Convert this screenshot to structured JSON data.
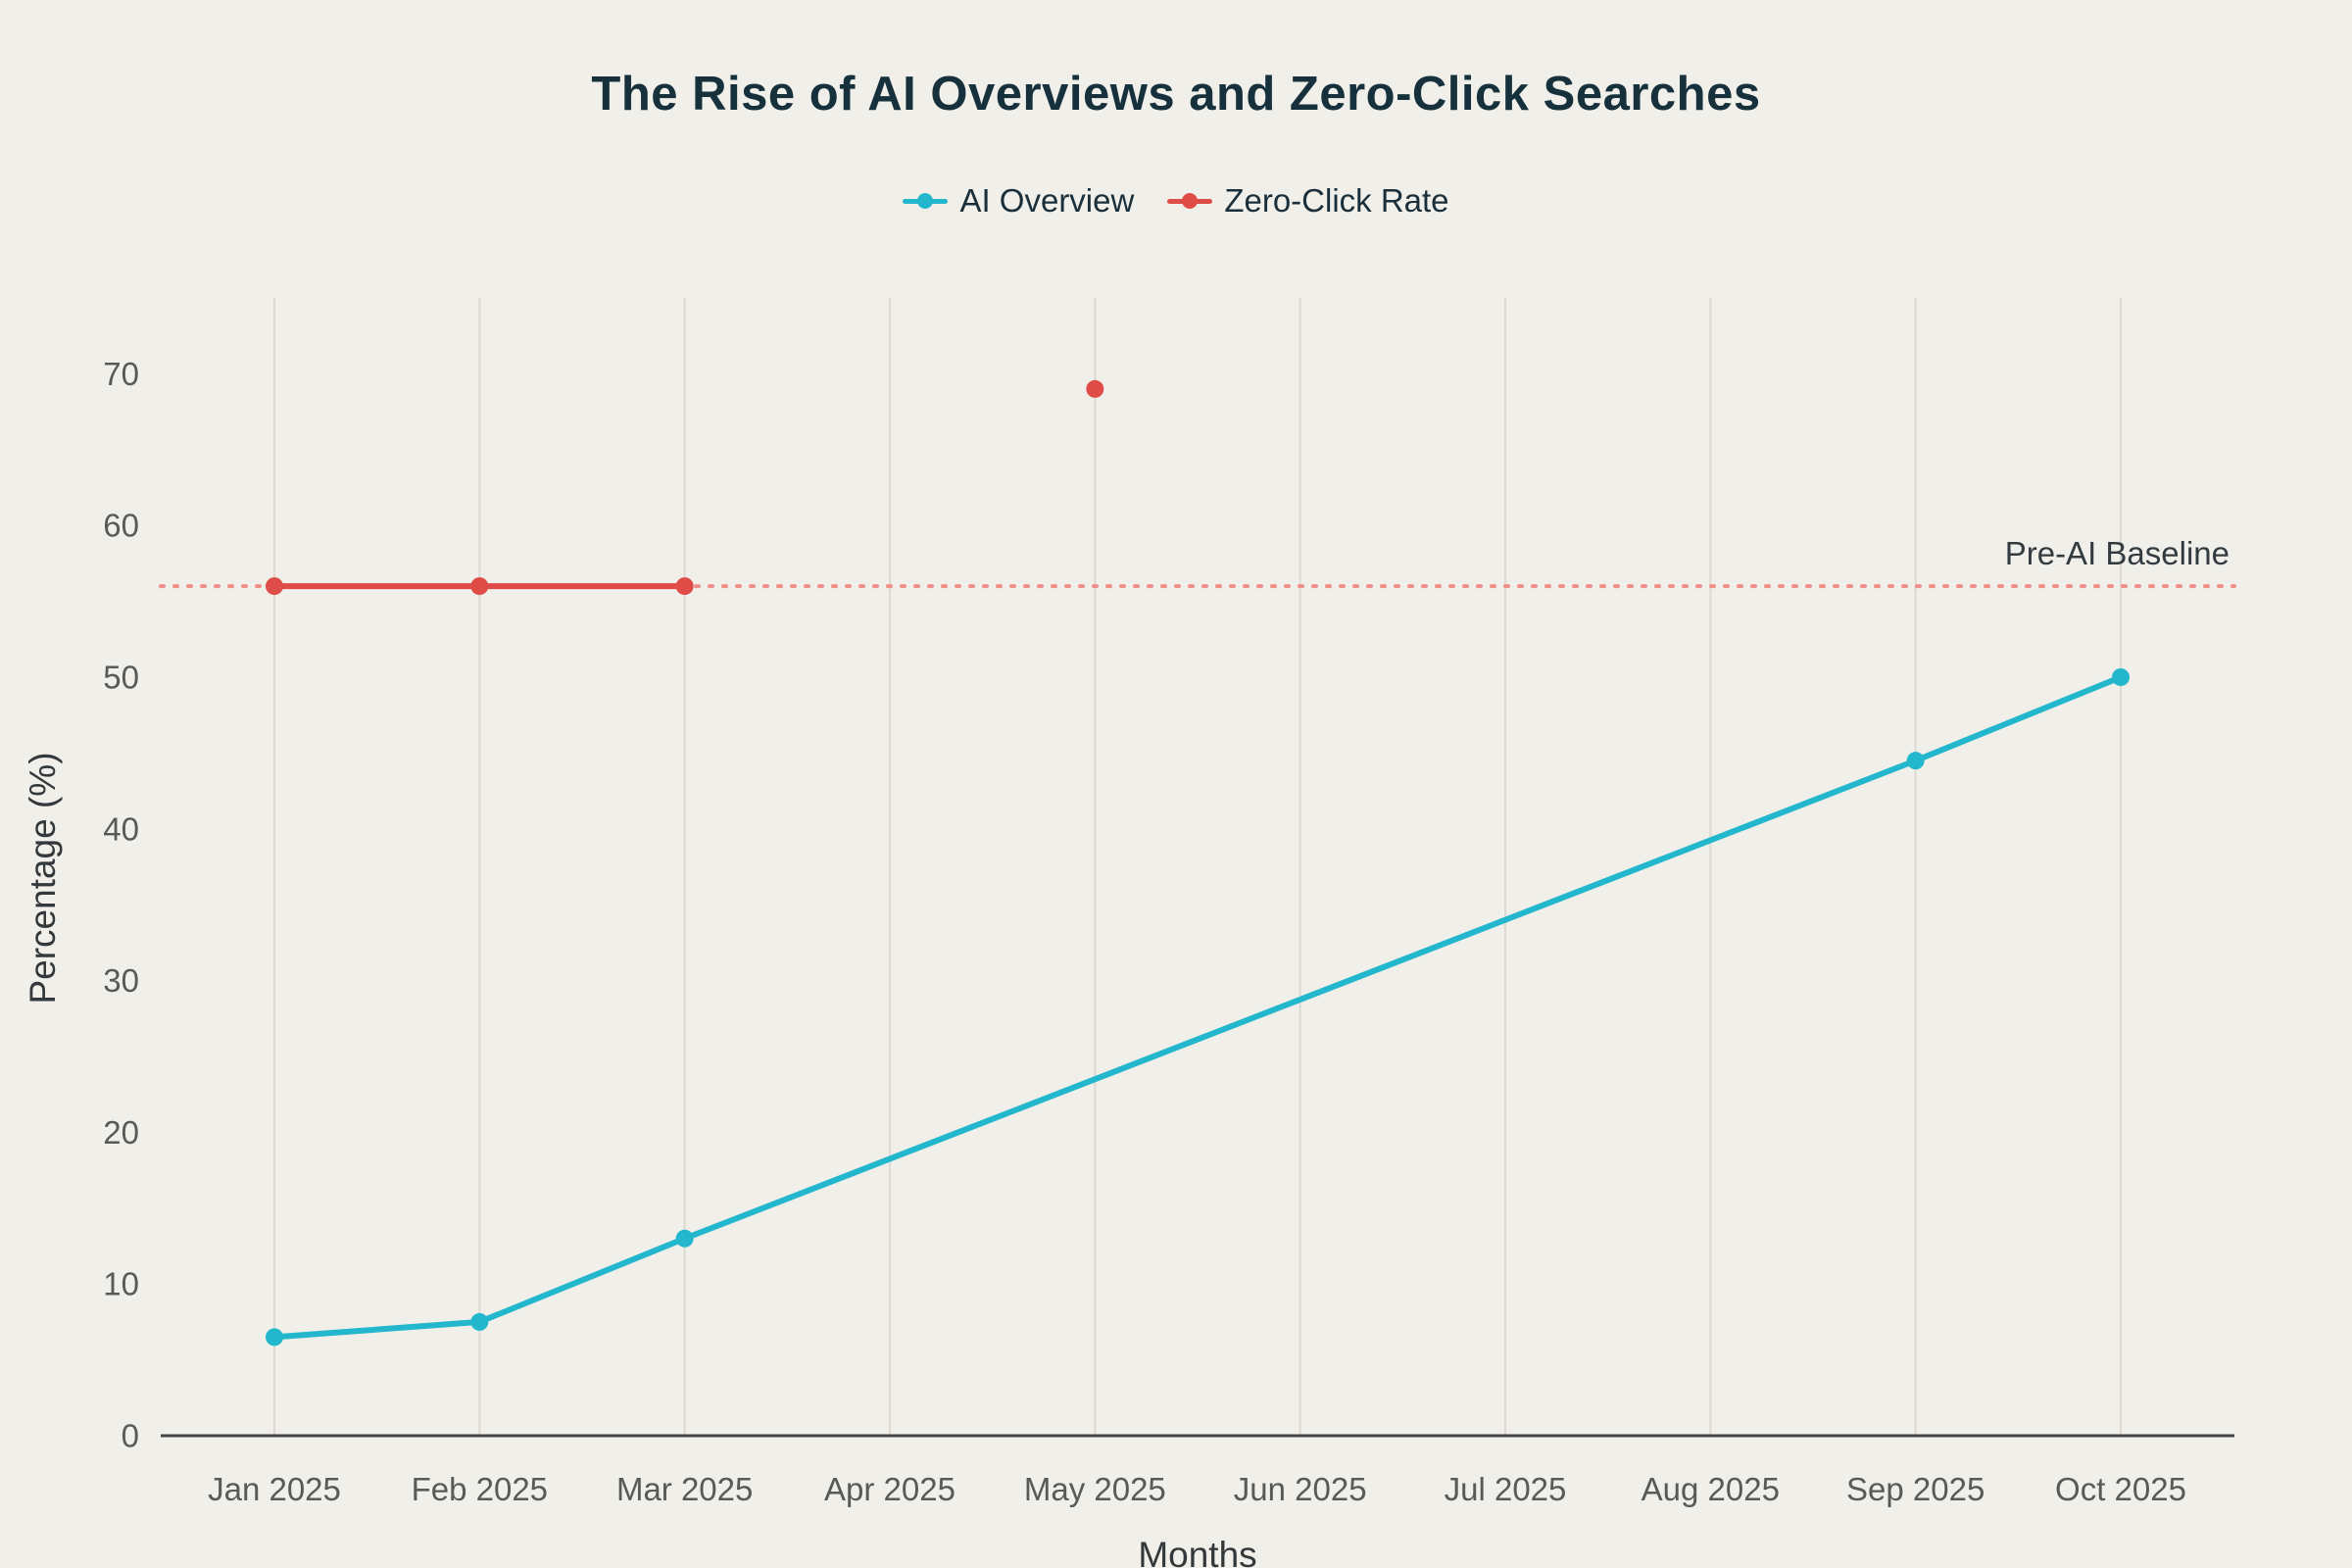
{
  "title": "The Rise of AI Overviews and Zero-Click Searches",
  "colors": {
    "background": "#f0efe9",
    "title": "#16303c",
    "grid": "#dcdad2",
    "axis_line": "#444444",
    "tick_label": "#595a58",
    "axis_title": "#33383b",
    "baseline_label": "#333b41"
  },
  "chart_data": {
    "type": "line",
    "x": [
      "Jan 2025",
      "Feb 2025",
      "Mar 2025",
      "Apr 2025",
      "May 2025",
      "Jun 2025",
      "Jul 2025",
      "Aug 2025",
      "Sep 2025",
      "Oct 2025"
    ],
    "series": [
      {
        "name": "AI Overview",
        "color": "#23b7cd",
        "values": [
          6.5,
          7.5,
          13,
          null,
          null,
          null,
          null,
          null,
          44.5,
          50
        ],
        "connect_gaps": true
      },
      {
        "name": "Zero-Click Rate",
        "color": "#df4c47",
        "values": [
          56,
          56,
          56,
          null,
          69,
          null,
          null,
          null,
          null,
          null
        ],
        "connect_gaps": false
      }
    ],
    "baseline": {
      "value": 56,
      "label": "Pre-AI Baseline",
      "color": "#ef8f89"
    },
    "xlabel": "Months",
    "ylabel": "Percentage (%)",
    "ylim": [
      0,
      75
    ],
    "yticks": [
      0,
      10,
      20,
      30,
      40,
      50,
      60,
      70
    ],
    "grid": "vertical",
    "legend_position": "top"
  }
}
